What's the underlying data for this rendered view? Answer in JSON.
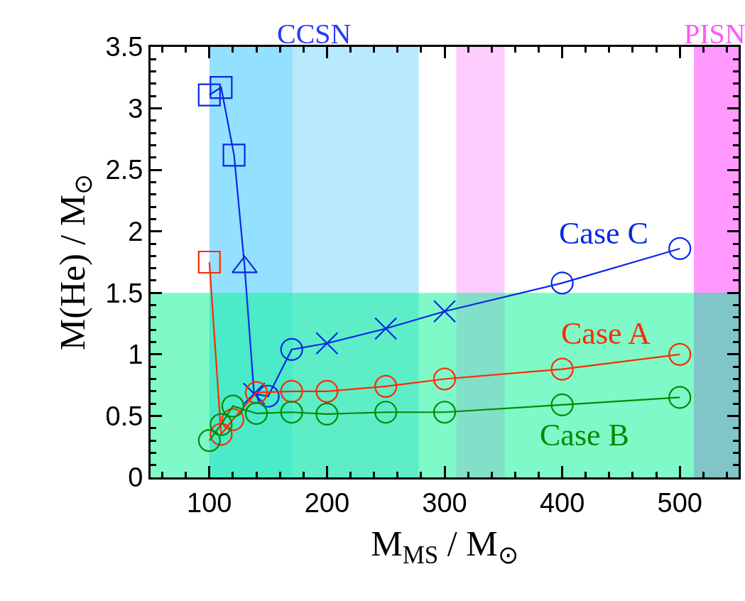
{
  "chart_data": {
    "type": "line",
    "xlabel": "M$_{MS}$ / M$_{⊙}$",
    "ylabel": "M(He) / M$_{⊙}$",
    "xlim": [
      50,
      550
    ],
    "ylim": [
      0,
      3.5
    ],
    "xticks": [
      {
        "value": 60,
        "label": null
      },
      {
        "value": 80,
        "label": null
      },
      100,
      {
        "value": 120,
        "label": null
      },
      {
        "value": 140,
        "label": null
      },
      {
        "value": 160,
        "label": null
      },
      {
        "value": 180,
        "label": null
      },
      200,
      {
        "value": 220,
        "label": null
      },
      {
        "value": 240,
        "label": null
      },
      {
        "value": 260,
        "label": null
      },
      {
        "value": 280,
        "label": null
      },
      300,
      {
        "value": 320,
        "label": null
      },
      {
        "value": 340,
        "label": null
      },
      {
        "value": 360,
        "label": null
      },
      {
        "value": 380,
        "label": null
      },
      400,
      {
        "value": 420,
        "label": null
      },
      {
        "value": 440,
        "label": null
      },
      {
        "value": 460,
        "label": null
      },
      {
        "value": 480,
        "label": null
      },
      500,
      {
        "value": 520,
        "label": null
      },
      {
        "value": 540,
        "label": null
      }
    ],
    "yticks": [
      0,
      {
        "value": 0.1,
        "label": null
      },
      {
        "value": 0.2,
        "label": null
      },
      {
        "value": 0.3,
        "label": null
      },
      {
        "value": 0.4,
        "label": null
      },
      0.5,
      {
        "value": 0.6,
        "label": null
      },
      {
        "value": 0.7,
        "label": null
      },
      {
        "value": 0.8,
        "label": null
      },
      {
        "value": 0.9,
        "label": null
      },
      1,
      {
        "value": 1.1,
        "label": null
      },
      {
        "value": 1.2,
        "label": null
      },
      {
        "value": 1.3,
        "label": null
      },
      {
        "value": 1.4,
        "label": null
      },
      1.5,
      {
        "value": 1.6,
        "label": null
      },
      {
        "value": 1.7,
        "label": null
      },
      {
        "value": 1.8,
        "label": null
      },
      {
        "value": 1.9,
        "label": null
      },
      2,
      {
        "value": 2.1,
        "label": null
      },
      {
        "value": 2.2,
        "label": null
      },
      {
        "value": 2.3,
        "label": null
      },
      {
        "value": 2.4,
        "label": null
      },
      2.5,
      {
        "value": 2.6,
        "label": null
      },
      {
        "value": 2.7,
        "label": null
      },
      {
        "value": 2.8,
        "label": null
      },
      {
        "value": 2.9,
        "label": null
      },
      3,
      {
        "value": 3.1,
        "label": null
      },
      {
        "value": 3.2,
        "label": null
      },
      {
        "value": 3.3,
        "label": null
      },
      {
        "value": 3.4,
        "label": null
      },
      3.5
    ],
    "grid": false,
    "legend": false,
    "line_style": "solid",
    "series": [
      {
        "name": "Case C",
        "color": "#0a28e6",
        "x": [
          100,
          110,
          121,
          130,
          138,
          150,
          170,
          200,
          250,
          300,
          400,
          500
        ],
        "values": [
          3.11,
          3.17,
          2.62,
          1.71,
          0.68,
          0.66,
          1.04,
          1.09,
          1.21,
          1.35,
          1.58,
          1.86
        ],
        "marker": [
          "square",
          "square",
          "square",
          "triangle",
          "cross",
          "circle",
          "circle",
          "cross",
          "cross",
          "cross",
          "circle",
          "circle"
        ]
      },
      {
        "name": "Case A",
        "color": "#ff2a00",
        "x": [
          100,
          110,
          120,
          140,
          170,
          200,
          250,
          300,
          400,
          500
        ],
        "values": [
          1.75,
          0.35,
          0.47,
          0.69,
          0.7,
          0.7,
          0.74,
          0.8,
          0.88,
          1.0
        ],
        "marker": [
          "square",
          "circle",
          "circle",
          "circle",
          "circle",
          "circle",
          "circle",
          "circle",
          "circle",
          "circle"
        ]
      },
      {
        "name": "Case B",
        "color": "#068a06",
        "x": [
          100,
          110,
          120,
          140,
          170,
          200,
          250,
          300,
          400,
          500
        ],
        "values": [
          0.3,
          0.43,
          0.58,
          0.52,
          0.53,
          0.515,
          0.53,
          0.53,
          0.59,
          0.65
        ],
        "marker": "circle"
      }
    ],
    "bands": [
      {
        "axis": "x",
        "from": 100,
        "to": 171,
        "color": "#94e0ff"
      },
      {
        "axis": "x",
        "from": 171,
        "to": 278,
        "color": "#b8e9fc"
      },
      {
        "axis": "x",
        "from": 310,
        "to": 351,
        "color": "#ffccff"
      },
      {
        "axis": "x",
        "from": 512,
        "to": 550,
        "color": "#ff99ff"
      },
      {
        "axis": "y",
        "from": 0,
        "to": 1.5,
        "color": "#80f9c8"
      }
    ],
    "annotations": [
      {
        "text": "CCSN",
        "x": 189,
        "y": 3.5
      },
      {
        "text": "PISN",
        "x": 530,
        "y": 3.5
      }
    ]
  }
}
